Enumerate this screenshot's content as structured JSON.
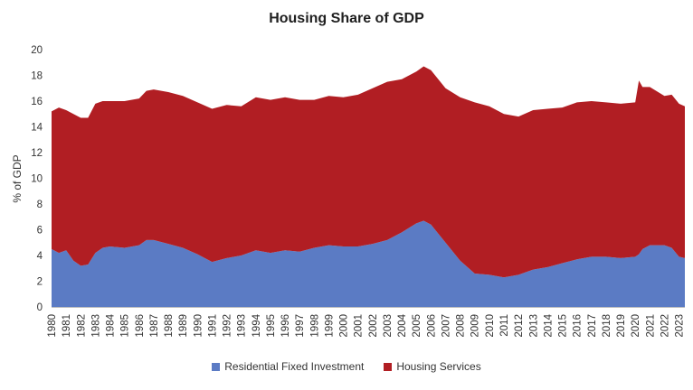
{
  "chart_data": {
    "type": "area",
    "stacked": true,
    "title": "Housing Share of GDP",
    "xlabel": "",
    "ylabel": "% of GDP",
    "ylim": [
      0,
      20
    ],
    "yticks": [
      "0",
      "2",
      "4",
      "6",
      "8",
      "10",
      "12",
      "14",
      "16",
      "18",
      "20"
    ],
    "xticks": [
      "1980",
      "1981",
      "1982",
      "1983",
      "1984",
      "1985",
      "1986",
      "1987",
      "1988",
      "1989",
      "1990",
      "1991",
      "1992",
      "1993",
      "1994",
      "1995",
      "1996",
      "1997",
      "1998",
      "1999",
      "2000",
      "2001",
      "2002",
      "2003",
      "2004",
      "2005",
      "2006",
      "2007",
      "2008",
      "2009",
      "2010",
      "2011",
      "2012",
      "2013",
      "2014",
      "2015",
      "2016",
      "2017",
      "2018",
      "2019",
      "2020",
      "2021",
      "2022",
      "2023"
    ],
    "x": [
      1980,
      1980.5,
      1981,
      1981.5,
      1982,
      1982.5,
      1983,
      1983.5,
      1984,
      1985,
      1986,
      1986.5,
      1987,
      1988,
      1989,
      1990,
      1991,
      1992,
      1993,
      1994,
      1995,
      1996,
      1997,
      1998,
      1999,
      2000,
      2001,
      2002,
      2003,
      2004,
      2005,
      2005.5,
      2006,
      2007,
      2008,
      2009,
      2010,
      2011,
      2012,
      2013,
      2014,
      2015,
      2016,
      2017,
      2018,
      2019,
      2020,
      2020.25,
      2020.5,
      2021,
      2022,
      2022.5,
      2023,
      2023.4
    ],
    "series": [
      {
        "name": "Residential Fixed Investment",
        "color": "#5b7bc4",
        "values": [
          4.5,
          4.2,
          4.4,
          3.6,
          3.2,
          3.3,
          4.2,
          4.6,
          4.7,
          4.6,
          4.8,
          5.2,
          5.2,
          4.9,
          4.6,
          4.1,
          3.5,
          3.8,
          4.0,
          4.4,
          4.2,
          4.4,
          4.3,
          4.6,
          4.8,
          4.7,
          4.7,
          4.9,
          5.2,
          5.8,
          6.5,
          6.7,
          6.4,
          5.0,
          3.6,
          2.6,
          2.5,
          2.3,
          2.5,
          2.9,
          3.1,
          3.4,
          3.7,
          3.9,
          3.9,
          3.8,
          3.9,
          4.1,
          4.5,
          4.8,
          4.8,
          4.6,
          3.9,
          3.8
        ]
      },
      {
        "name": "Housing Services",
        "color": "#b11e23",
        "values": [
          10.7,
          11.3,
          10.9,
          11.4,
          11.5,
          11.4,
          11.6,
          11.4,
          11.3,
          11.4,
          11.4,
          11.6,
          11.7,
          11.8,
          11.8,
          11.8,
          11.9,
          11.9,
          11.6,
          11.9,
          11.9,
          11.9,
          11.8,
          11.5,
          11.6,
          11.6,
          11.8,
          12.1,
          12.3,
          11.9,
          11.8,
          12.0,
          12.0,
          12.0,
          12.7,
          13.3,
          13.1,
          12.7,
          12.3,
          12.4,
          12.3,
          12.1,
          12.2,
          12.1,
          12.0,
          12.0,
          12.0,
          13.5,
          12.6,
          12.3,
          11.6,
          11.9,
          11.9,
          11.8
        ]
      }
    ],
    "legend_position": "bottom",
    "grid": false
  }
}
